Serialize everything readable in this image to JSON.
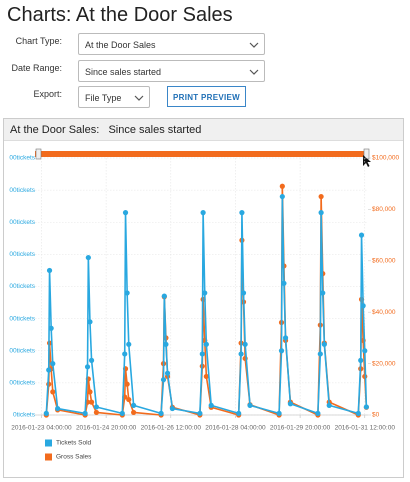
{
  "header": {
    "title": "Charts: At the Door Sales"
  },
  "form": {
    "fields": [
      {
        "label": "Chart Type:",
        "value": "At the Door Sales"
      },
      {
        "label": "Date Range:",
        "value": "Since sales started"
      },
      {
        "label": "Export:",
        "value": "File Type"
      }
    ],
    "button": "PRINT PREVIEW"
  },
  "chart_data": {
    "type": "line",
    "title": "At the Door Sales:",
    "subtitle": "Since sales started",
    "x": [
      "2016-01-23 07:00:00",
      "2016-01-23 08:30:00",
      "2016-01-23 09:00:00",
      "2016-01-23 10:00:00",
      "2016-01-23 11:00:00",
      "2016-01-23 14:00:00",
      "2016-01-24 07:00:00",
      "2016-01-24 08:30:00",
      "2016-01-24 09:00:00",
      "2016-01-24 10:00:00",
      "2016-01-24 11:00:00",
      "2016-01-24 14:00:00",
      "2016-01-25 06:00:00",
      "2016-01-25 07:30:00",
      "2016-01-25 08:00:00",
      "2016-01-25 09:00:00",
      "2016-01-25 10:00:00",
      "2016-01-25 13:00:00",
      "2016-01-26 06:00:00",
      "2016-01-26 07:30:00",
      "2016-01-26 08:00:00",
      "2016-01-26 09:00:00",
      "2016-01-26 10:00:00",
      "2016-01-26 13:00:00",
      "2016-01-27 06:00:00",
      "2016-01-27 07:30:00",
      "2016-01-27 08:00:00",
      "2016-01-27 09:00:00",
      "2016-01-27 10:00:00",
      "2016-01-27 13:00:00",
      "2016-01-28 06:00:00",
      "2016-01-28 07:30:00",
      "2016-01-28 08:00:00",
      "2016-01-28 09:00:00",
      "2016-01-28 10:00:00",
      "2016-01-28 13:00:00",
      "2016-01-29 07:00:00",
      "2016-01-29 08:30:00",
      "2016-01-29 09:00:00",
      "2016-01-29 10:00:00",
      "2016-01-29 11:00:00",
      "2016-01-29 14:00:00",
      "2016-01-30 07:00:00",
      "2016-01-30 08:30:00",
      "2016-01-30 09:00:00",
      "2016-01-30 10:00:00",
      "2016-01-30 11:00:00",
      "2016-01-30 14:00:00",
      "2016-01-31 08:00:00",
      "2016-01-31 09:30:00",
      "2016-01-31 10:00:00",
      "2016-01-31 11:00:00",
      "2016-01-31 12:00:00",
      "2016-01-31 13:00:00"
    ],
    "series": [
      {
        "name": "Gross Sales",
        "color": "#f26b1d",
        "axis": "y2",
        "values": [
          0,
          12000,
          28000,
          18000,
          9000,
          2000,
          0,
          5000,
          14000,
          9000,
          5000,
          1000,
          0,
          7000,
          18000,
          12000,
          6000,
          1000,
          0,
          20000,
          46000,
          30000,
          15000,
          3000,
          0,
          19000,
          45000,
          29000,
          15000,
          3000,
          0,
          28000,
          68000,
          44000,
          22000,
          4000,
          0,
          36000,
          89000,
          58000,
          29000,
          5000,
          0,
          35000,
          85000,
          55000,
          28000,
          5000,
          0,
          18000,
          45000,
          29000,
          15000,
          3000
        ]
      },
      {
        "name": "Tickets Sold",
        "color": "#29a8e0",
        "values": [
          5,
          140,
          450,
          270,
          160,
          20,
          5,
          150,
          490,
          290,
          170,
          25,
          5,
          190,
          630,
          380,
          220,
          30,
          5,
          110,
          370,
          220,
          130,
          20,
          5,
          190,
          630,
          380,
          220,
          30,
          5,
          190,
          630,
          380,
          220,
          30,
          5,
          200,
          680,
          410,
          240,
          35,
          5,
          190,
          630,
          380,
          220,
          30,
          5,
          170,
          560,
          340,
          200,
          25
        ]
      }
    ],
    "xlim": [
      "2016-01-23 00:00:00",
      "2016-01-31 14:00:00"
    ],
    "xticks": [
      "2016-01-23 04:00:00",
      "2016-01-24 20:00:00",
      "2016-01-26 12:00:00",
      "2016-01-28 04:00:00",
      "2016-01-29 20:00:00",
      "2016-01-31 12:00:00"
    ],
    "ylim": [
      0,
      800
    ],
    "yticks": [
      {
        "value": 0,
        "label": "0tickets"
      },
      {
        "value": 100,
        "label": "00tickets"
      },
      {
        "value": 200,
        "label": "00tickets"
      },
      {
        "value": 300,
        "label": "00tickets"
      },
      {
        "value": 400,
        "label": "00tickets"
      },
      {
        "value": 500,
        "label": "00tickets"
      },
      {
        "value": 600,
        "label": "00tickets"
      },
      {
        "value": 700,
        "label": "00tickets"
      },
      {
        "value": 800,
        "label": "00tickets"
      }
    ],
    "y2lim": [
      0,
      100000
    ],
    "y2ticks": [
      {
        "value": 0,
        "label": "$0"
      },
      {
        "value": 20000,
        "label": "$20,000"
      },
      {
        "value": 40000,
        "label": "$40,000"
      },
      {
        "value": 60000,
        "label": "$60,000"
      },
      {
        "value": 80000,
        "label": "$80,000"
      },
      {
        "value": 100000,
        "label": "$100,000"
      }
    ],
    "grid": true,
    "legend": "bottom-left"
  }
}
